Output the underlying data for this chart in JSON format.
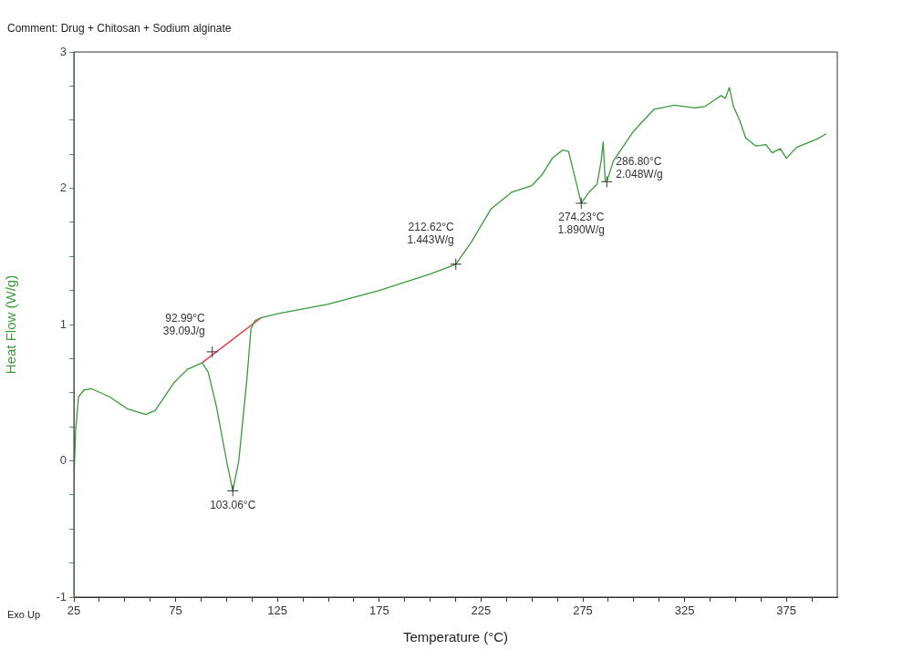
{
  "chart_data": {
    "type": "line",
    "xlabel": "Temperature (°C)",
    "ylabel": "Heat Flow (W/g)",
    "xlim": [
      25,
      400
    ],
    "ylim": [
      -1,
      3
    ],
    "xticks": [
      25,
      {
        "value": 37.5,
        "label": null
      },
      {
        "value": 50,
        "label": null
      },
      {
        "value": 62.5,
        "label": null
      },
      75,
      {
        "value": 87.5,
        "label": null
      },
      {
        "value": 100,
        "label": null
      },
      {
        "value": 112.5,
        "label": null
      },
      125,
      {
        "value": 137.5,
        "label": null
      },
      {
        "value": 150,
        "label": null
      },
      {
        "value": 162.5,
        "label": null
      },
      175,
      {
        "value": 187.5,
        "label": null
      },
      {
        "value": 200,
        "label": null
      },
      {
        "value": 212.5,
        "label": null
      },
      225,
      {
        "value": 237.5,
        "label": null
      },
      {
        "value": 250,
        "label": null
      },
      {
        "value": 262.5,
        "label": null
      },
      275,
      {
        "value": 287.5,
        "label": null
      },
      {
        "value": 300,
        "label": null
      },
      {
        "value": 312.5,
        "label": null
      },
      325,
      {
        "value": 337.5,
        "label": null
      },
      {
        "value": 350,
        "label": null
      },
      {
        "value": 362.5,
        "label": null
      },
      375,
      {
        "value": 387.5,
        "label": null
      }
    ],
    "yticks": [
      -1,
      {
        "value": -0.75,
        "label": null
      },
      {
        "value": -0.5,
        "label": null
      },
      {
        "value": -0.25,
        "label": null
      },
      0,
      {
        "value": 0.25,
        "label": null
      },
      {
        "value": 0.5,
        "label": null
      },
      {
        "value": 0.75,
        "label": null
      },
      1,
      {
        "value": 1.25,
        "label": null
      },
      {
        "value": 1.5,
        "label": null
      },
      {
        "value": 1.75,
        "label": null
      },
      2,
      {
        "value": 2.25,
        "label": null
      },
      {
        "value": 2.5,
        "label": null
      },
      {
        "value": 2.75,
        "label": null
      },
      3
    ],
    "grid": false,
    "legend": false,
    "marker": "none",
    "line_style": "solid",
    "series": [
      {
        "color": "#3a9a3a",
        "x": [
          25,
          25.9,
          27.3,
          30,
          33.5,
          42.5,
          51.5,
          60.4,
          65,
          74,
          80.6,
          88,
          91,
          95,
          100,
          103.06,
          106,
          110,
          112,
          114,
          117,
          125,
          150,
          175,
          200,
          212.62,
          220,
          230,
          240,
          250,
          255,
          260,
          265,
          268,
          274.23,
          278,
          282,
          284,
          285,
          286,
          286.8,
          290,
          300,
          310,
          320,
          330,
          335,
          340,
          343,
          345,
          347,
          349,
          352,
          355,
          360,
          365,
          368,
          372,
          375,
          380,
          385,
          390,
          394.6
        ],
        "values": [
          -0.13,
          0.23,
          0.47,
          0.52,
          0.53,
          0.47,
          0.38,
          0.34,
          0.37,
          0.57,
          0.67,
          0.72,
          0.65,
          0.4,
          0.0,
          -0.22,
          0.0,
          0.6,
          0.97,
          1.03,
          1.05,
          1.08,
          1.15,
          1.25,
          1.37,
          1.443,
          1.6,
          1.85,
          1.97,
          2.02,
          2.1,
          2.22,
          2.28,
          2.27,
          1.89,
          1.97,
          2.03,
          2.2,
          2.34,
          2.05,
          2.048,
          2.2,
          2.42,
          2.58,
          2.61,
          2.59,
          2.6,
          2.65,
          2.68,
          2.66,
          2.74,
          2.6,
          2.5,
          2.37,
          2.31,
          2.32,
          2.26,
          2.29,
          2.22,
          2.3,
          2.33,
          2.36,
          2.4
        ]
      },
      {
        "color": "#e8303a",
        "x": [
          88,
          117
        ],
        "values": [
          0.72,
          1.05
        ]
      }
    ],
    "annotations": [
      "Comment: Drug + Chitosan + Sodium alginate",
      "Exo Up",
      {
        "text": "92.99°C\n39.09J/g",
        "x": 92.99,
        "y": 0.8
      },
      {
        "text": "103.06°C",
        "x": 103.06,
        "y": -0.22
      },
      {
        "text": "212.62°C\n1.443W/g",
        "x": 212.62,
        "y": 1.443
      },
      {
        "text": "274.23°C\n1.890W/g",
        "x": 274.23,
        "y": 1.89
      },
      {
        "text": "286.80°C\n2.048W/g",
        "x": 286.8,
        "y": 2.048
      }
    ]
  }
}
